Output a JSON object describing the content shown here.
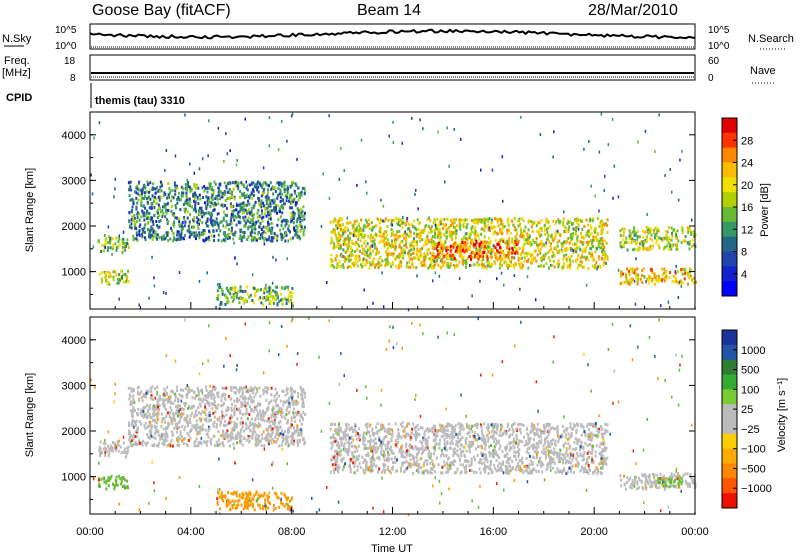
{
  "header": {
    "radar": "Goose Bay (fitACF)",
    "beam": "Beam 14",
    "date": "28/Mar/2010"
  },
  "top_panels": {
    "left": {
      "nsky": "N.Sky",
      "freq_line1": "Freq.",
      "freq_line2": "[MHz]",
      "cpid": "CPID"
    },
    "right": {
      "nsearch": "N.Search",
      "nave": "Nave"
    },
    "noise_ticks_left": [
      "10^5",
      "10^0"
    ],
    "noise_ticks_right": [
      "10^5",
      "10^0"
    ],
    "freq_ticks_left": [
      "18",
      "8"
    ],
    "freq_ticks_right": [
      "60",
      "0"
    ],
    "cpid_text": "themis (tau) 3310"
  },
  "axes": {
    "ylabel": "Slant Range [km]",
    "xlabel": "Time UT",
    "x_ticks": [
      "00:00",
      "04:00",
      "08:00",
      "12:00",
      "16:00",
      "20:00",
      "00:00"
    ],
    "y_ticks": [
      "1000",
      "2000",
      "3000",
      "4000"
    ]
  },
  "colorbars": {
    "power": {
      "label": "Power [dB]",
      "ticks": [
        "28",
        "24",
        "20",
        "16",
        "12",
        "8",
        "4"
      ],
      "colors": [
        "#e00000",
        "#ff3300",
        "#ff8800",
        "#ffbb00",
        "#f0e000",
        "#b0d000",
        "#66bb33",
        "#339966",
        "#226688",
        "#2244aa",
        "#1122cc",
        "#0000ff"
      ]
    },
    "velocity": {
      "label": "Velocity [m s⁻¹]",
      "ticks": [
        "1000",
        "500",
        "100",
        "25",
        "−25",
        "−100",
        "−500",
        "−1000"
      ],
      "colors": [
        "#1a3399",
        "#2255aa",
        "#2e7d32",
        "#33aa33",
        "#77cc33",
        "#bbbbbb",
        "#bbbbbb",
        "#ffcc00",
        "#ffaa00",
        "#ff8800",
        "#ff5500",
        "#ee1100"
      ]
    }
  },
  "chart_data": [
    {
      "type": "heatmap",
      "title": "Power",
      "xlabel": "Time UT",
      "ylabel": "Slant Range [km]",
      "xlim": [
        "00:00",
        "24:00"
      ],
      "ylim": [
        180,
        4500
      ],
      "colorbar_range_db": [
        0,
        30
      ],
      "bands": [
        {
          "t_start": 0.3,
          "t_end": 1.5,
          "r_lo": 1450,
          "r_hi": 1800,
          "power_db": 14
        },
        {
          "t_start": 0.3,
          "t_end": 1.5,
          "r_lo": 750,
          "r_hi": 1050,
          "power_db": 16
        },
        {
          "t_start": 1.5,
          "t_end": 8.5,
          "r_lo": 1700,
          "r_hi": 3000,
          "power_db": 10
        },
        {
          "t_start": 5.0,
          "t_end": 8.0,
          "r_lo": 300,
          "r_hi": 700,
          "power_db": 14
        },
        {
          "t_start": 9.5,
          "t_end": 20.5,
          "r_lo": 1100,
          "r_hi": 2200,
          "power_db": 18
        },
        {
          "t_start": 13.5,
          "t_end": 17.0,
          "r_lo": 1300,
          "r_hi": 1700,
          "power_db": 24
        },
        {
          "t_start": 21.0,
          "t_end": 24.0,
          "r_lo": 750,
          "r_hi": 1100,
          "power_db": 20
        },
        {
          "t_start": 21.0,
          "t_end": 24.0,
          "r_lo": 1500,
          "r_hi": 2000,
          "power_db": 16
        }
      ]
    },
    {
      "type": "heatmap",
      "title": "Velocity",
      "xlabel": "Time UT",
      "ylabel": "Slant Range [km]",
      "xlim": [
        "00:00",
        "24:00"
      ],
      "ylim": [
        180,
        4500
      ],
      "colorbar_range_ms": [
        -1000,
        1000
      ],
      "bands": [
        {
          "t_start": 0.3,
          "t_end": 1.5,
          "r_lo": 1450,
          "r_hi": 1800,
          "velocity": 0
        },
        {
          "t_start": 0.3,
          "t_end": 1.5,
          "r_lo": 750,
          "r_hi": 1050,
          "velocity": 80
        },
        {
          "t_start": 1.5,
          "t_end": 8.5,
          "r_lo": 1700,
          "r_hi": 3000,
          "velocity": 0
        },
        {
          "t_start": 5.0,
          "t_end": 8.0,
          "r_lo": 300,
          "r_hi": 700,
          "velocity": -200
        },
        {
          "t_start": 9.5,
          "t_end": 20.5,
          "r_lo": 1100,
          "r_hi": 2200,
          "velocity": 0
        },
        {
          "t_start": 21.0,
          "t_end": 24.0,
          "r_lo": 750,
          "r_hi": 1100,
          "velocity": 0
        },
        {
          "t_start": 22.5,
          "t_end": 23.5,
          "r_lo": 800,
          "r_hi": 1000,
          "velocity": 80
        }
      ]
    }
  ]
}
